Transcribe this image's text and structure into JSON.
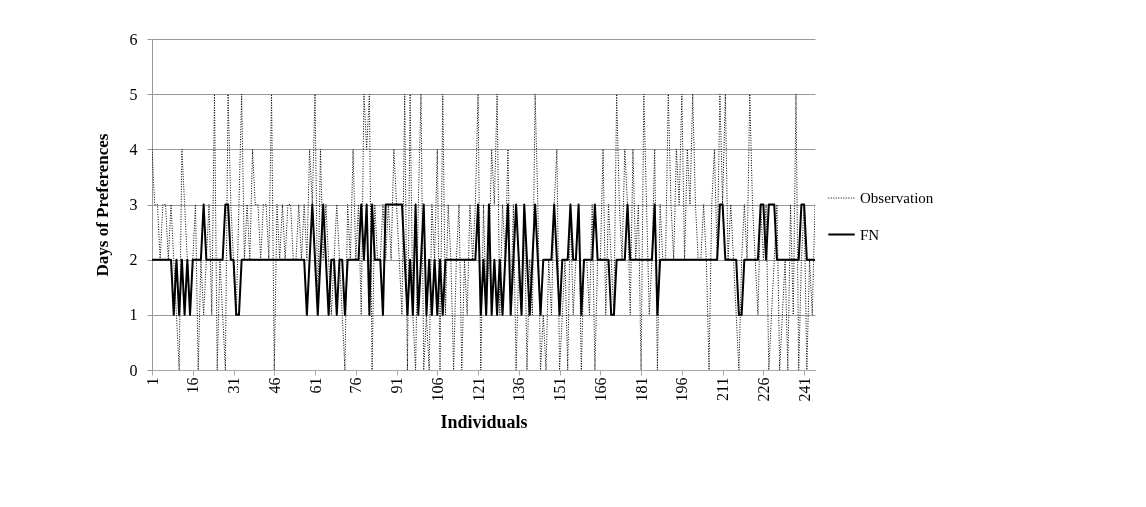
{
  "chart_data": {
    "type": "line",
    "xlabel": "Individuals",
    "ylabel": "Days of Preferences",
    "x": [
      1,
      2,
      3,
      4,
      5,
      6,
      7,
      8,
      9,
      10,
      11,
      12,
      13,
      14,
      15,
      16,
      17,
      18,
      19,
      20,
      21,
      22,
      23,
      24,
      25,
      26,
      27,
      28,
      29,
      30,
      31,
      32,
      33,
      34,
      35,
      36,
      37,
      38,
      39,
      40,
      41,
      42,
      43,
      44,
      45,
      46,
      47,
      48,
      49,
      50,
      51,
      52,
      53,
      54,
      55,
      56,
      57,
      58,
      59,
      60,
      61,
      62,
      63,
      64,
      65,
      66,
      67,
      68,
      69,
      70,
      71,
      72,
      73,
      74,
      75,
      76,
      77,
      78,
      79,
      80,
      81,
      82,
      83,
      84,
      85,
      86,
      87,
      88,
      89,
      90,
      91,
      92,
      93,
      94,
      95,
      96,
      97,
      98,
      99,
      100,
      101,
      102,
      103,
      104,
      105,
      106,
      107,
      108,
      109,
      110,
      111,
      112,
      113,
      114,
      115,
      116,
      117,
      118,
      119,
      120,
      121,
      122,
      123,
      124,
      125,
      126,
      127,
      128,
      129,
      130,
      131,
      132,
      133,
      134,
      135,
      136,
      137,
      138,
      139,
      140,
      141,
      142,
      143,
      144,
      145,
      146,
      147,
      148,
      149,
      150,
      151,
      152,
      153,
      154,
      155,
      156,
      157,
      158,
      159,
      160,
      161,
      162,
      163,
      164,
      165,
      166,
      167,
      168,
      169,
      170,
      171,
      172,
      173,
      174,
      175,
      176,
      177,
      178,
      179,
      180,
      181,
      182,
      183,
      184,
      185,
      186,
      187,
      188,
      189,
      190,
      191,
      192,
      193,
      194,
      195,
      196,
      197,
      198,
      199,
      200,
      201,
      202,
      203,
      204,
      205,
      206,
      207,
      208,
      209,
      210,
      211,
      212,
      213,
      214,
      215,
      216,
      217,
      218,
      219,
      220,
      221,
      222,
      223,
      224,
      225,
      226,
      227,
      228,
      229,
      230,
      231,
      232,
      233,
      234,
      235,
      236,
      237,
      238,
      239,
      240,
      241,
      242,
      243,
      244,
      245
    ],
    "series": [
      {
        "name": "Observation",
        "color": "#000000",
        "line_style": "dotted",
        "values": [
          4,
          3,
          3,
          2,
          3,
          3,
          2,
          3,
          2,
          1,
          0,
          4,
          3,
          2,
          1,
          2,
          3,
          0,
          2,
          1,
          2,
          3,
          1,
          5,
          0,
          2,
          1,
          0,
          5,
          3,
          2,
          1,
          3,
          5,
          2,
          3,
          2,
          4,
          3,
          3,
          2,
          3,
          3,
          2,
          5,
          0,
          3,
          2,
          3,
          2,
          3,
          3,
          2,
          2,
          3,
          2,
          3,
          2,
          4,
          3,
          5,
          1,
          4,
          2,
          3,
          2,
          1,
          2,
          3,
          2,
          1,
          0,
          3,
          2,
          4,
          2,
          3,
          1,
          5,
          4,
          5,
          0,
          3,
          2,
          2,
          3,
          2,
          3,
          2,
          4,
          3,
          2,
          1,
          5,
          0,
          5,
          1,
          0,
          3,
          5,
          0,
          1,
          0,
          3,
          2,
          4,
          0,
          5,
          1,
          3,
          2,
          0,
          2,
          3,
          0,
          2,
          1,
          3,
          2,
          3,
          5,
          0,
          3,
          1,
          2,
          4,
          3,
          5,
          1,
          3,
          2,
          4,
          1,
          3,
          0,
          2,
          1,
          3,
          0,
          2,
          1,
          5,
          3,
          0,
          1,
          0,
          2,
          1,
          3,
          4,
          0,
          1,
          2,
          0,
          3,
          1,
          2,
          3,
          0,
          2,
          2,
          1,
          3,
          0,
          2,
          2,
          4,
          1,
          3,
          2,
          1,
          5,
          3,
          2,
          4,
          3,
          1,
          4,
          2,
          3,
          0,
          5,
          3,
          1,
          2,
          4,
          0,
          3,
          2,
          2,
          5,
          3,
          2,
          4,
          3,
          5,
          2,
          4,
          3,
          5,
          3,
          2,
          2,
          3,
          2,
          0,
          3,
          4,
          2,
          5,
          3,
          5,
          2,
          3,
          2,
          1,
          0,
          2,
          3,
          2,
          5,
          3,
          2,
          1,
          3,
          2,
          3,
          0,
          1,
          2,
          3,
          0,
          1,
          2,
          0,
          3,
          1,
          5,
          0,
          2,
          3,
          0,
          2,
          1,
          3
        ]
      },
      {
        "name": "FN",
        "color": "#000000",
        "line_style": "solid",
        "values": [
          2,
          2,
          2,
          2,
          2,
          2,
          2,
          2,
          1,
          2,
          1,
          2,
          1,
          2,
          1,
          2,
          2,
          2,
          2,
          3,
          2,
          2,
          2,
          2,
          2,
          2,
          2,
          3,
          3,
          2,
          2,
          1,
          1,
          2,
          2,
          2,
          2,
          2,
          2,
          2,
          2,
          2,
          2,
          2,
          2,
          2,
          2,
          2,
          2,
          2,
          2,
          2,
          2,
          2,
          2,
          2,
          2,
          1,
          2,
          3,
          2,
          1,
          2,
          3,
          2,
          1,
          2,
          2,
          1,
          2,
          2,
          1,
          2,
          2,
          2,
          2,
          2,
          3,
          2,
          3,
          1,
          3,
          2,
          2,
          2,
          1,
          3,
          3,
          3,
          3,
          3,
          3,
          3,
          2,
          1,
          2,
          1,
          3,
          1,
          2,
          3,
          1,
          2,
          1,
          2,
          1,
          2,
          1,
          2,
          2,
          2,
          2,
          2,
          2,
          2,
          2,
          2,
          2,
          2,
          2,
          3,
          1,
          2,
          1,
          3,
          1,
          2,
          1,
          2,
          1,
          2,
          3,
          1,
          2,
          3,
          2,
          1,
          3,
          2,
          1,
          2,
          3,
          2,
          1,
          2,
          2,
          2,
          2,
          3,
          2,
          1,
          2,
          2,
          2,
          3,
          2,
          2,
          3,
          1,
          2,
          2,
          2,
          2,
          3,
          2,
          2,
          2,
          2,
          2,
          1,
          1,
          2,
          2,
          2,
          2,
          3,
          2,
          2,
          2,
          2,
          2,
          2,
          2,
          2,
          2,
          3,
          1,
          2,
          2,
          2,
          2,
          2,
          2,
          2,
          2,
          2,
          2,
          2,
          2,
          2,
          2,
          2,
          2,
          2,
          2,
          2,
          2,
          2,
          2,
          3,
          3,
          2,
          2,
          2,
          2,
          2,
          1,
          1,
          2,
          2,
          2,
          2,
          2,
          2,
          3,
          3,
          2,
          3,
          3,
          3,
          2,
          2,
          2,
          2,
          2,
          2,
          2,
          2,
          2,
          3,
          3,
          2,
          2,
          2,
          2
        ]
      }
    ],
    "xlim": [
      1,
      245
    ],
    "xticks": [
      1,
      16,
      31,
      46,
      61,
      76,
      91,
      106,
      121,
      136,
      151,
      166,
      181,
      196,
      211,
      226,
      241
    ],
    "ylim": [
      0,
      6
    ],
    "yticks": [
      0,
      1,
      2,
      3,
      4,
      5,
      6
    ],
    "grid": "y",
    "legend": "right"
  }
}
